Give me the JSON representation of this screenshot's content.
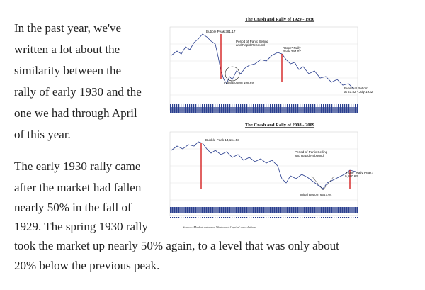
{
  "article": {
    "paragraphs": [
      {
        "lines": [
          "In the past year, we've",
          "written a lot about the",
          "similarity between the",
          "rally of early 1930 and the",
          "one we had through April",
          "of this year."
        ]
      },
      {
        "lines": [
          "The early 1930 rally came",
          "after the market had fallen",
          "nearly 50% in the fall of",
          "1929.  The spring 1930 rally",
          "took the market up nearly 50% again, to a level that was only about",
          "20% below the previous peak."
        ]
      }
    ]
  },
  "figure": {
    "top": {
      "title": "The Crash and Rally of 1929 - 1930",
      "peak": "Bubble Peak 381.17",
      "panic": [
        "Period of Panic Selling",
        "and Rapid Rebound"
      ],
      "hope": [
        "\"Hope\" Rally",
        "Peak 294.07"
      ],
      "bottom": "Initial Bottom 198.69",
      "eventual": [
        "Eventual Bottom",
        "at 41.82 - July 1932"
      ]
    },
    "bottom": {
      "title": "The Crash and Rally of 2008 - 2009",
      "peak": "Bubble Peak 14,164.53",
      "panic": [
        "Period of Panic Selling",
        "and Rapid Rebound"
      ],
      "bottom": "Initial Bottom 6547.04",
      "hope": [
        "\"Hope\" Rally Peak?",
        "9,580.63"
      ]
    },
    "source": "Source: Market data and Westwood Capital calculations"
  }
}
